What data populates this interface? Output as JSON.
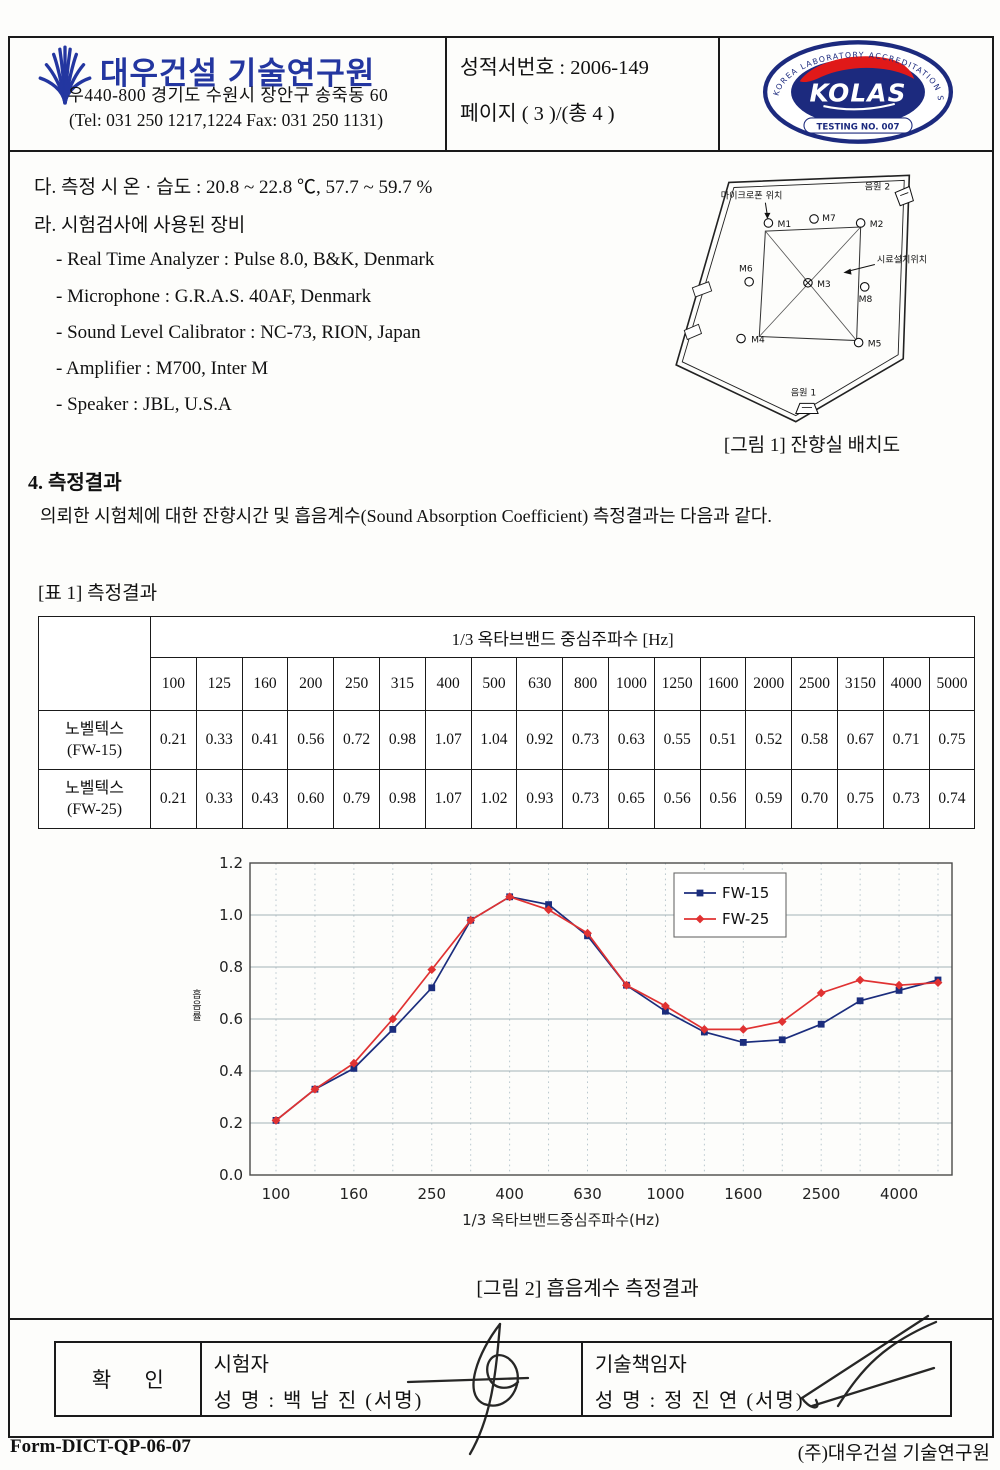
{
  "header": {
    "org_name": "대우건설 기술연구원",
    "address": "우440-800 경기도 수원시 장안구 송죽동 60",
    "tel_fax": "(Tel: 031 250 1217,1224   Fax: 031 250 1131)",
    "report_no": "성적서번호 : 2006-149",
    "page_label": "페이지 ( 3 )/(총 4 )",
    "seal": {
      "ring_text": "KOREA LABORATORY ACCREDITATION SCHEME",
      "name": "KOLAS",
      "testing_no": "TESTING NO. 007",
      "navy": "#1c2a7e",
      "red": "#e01919"
    }
  },
  "conditions": {
    "humidity_line": "다. 측정 시 온 · 습도 : 20.8 ~ 22.8 ℃, 57.7 ~ 59.7 %",
    "equipment_heading": "라. 시험검사에 사용된 장비",
    "equipment": [
      "- Real Time Analyzer : Pulse 8.0, B&K, Denmark",
      "- Microphone : G.R.A.S. 40AF, Denmark",
      "- Sound Level Calibrator : NC-73, RION, Japan",
      "- Amplifier : M700, Inter M",
      "- Speaker : JBL, U.S.A"
    ]
  },
  "figure1": {
    "caption": "[그림 1] 잔향실 배치도",
    "labels": {
      "mic_position": "마이크로폰 위치",
      "specimen": "시료설치위치",
      "source1": "음원 1",
      "source2": "음원 2",
      "mics": [
        "M1",
        "M7",
        "M2",
        "M6",
        "M3",
        "M8",
        "M4",
        "M5"
      ]
    }
  },
  "section4": {
    "heading": "4. 측정결과",
    "body": "의뢰한 시험체에 대한 잔향시간 및 흡음계수(Sound Absorption Coefficient) 측정결과는 다음과 같다.",
    "table_label": "[표 1] 측정결과"
  },
  "table": {
    "band_header": "1/3 옥타브밴드 중심주파수 [Hz]",
    "frequencies": [
      "100",
      "125",
      "160",
      "200",
      "250",
      "315",
      "400",
      "500",
      "630",
      "800",
      "1000",
      "1250",
      "1600",
      "2000",
      "2500",
      "3150",
      "4000",
      "5000"
    ],
    "rows": [
      {
        "name": "노벨텍스",
        "sub": "(FW-15)",
        "values": [
          "0.21",
          "0.33",
          "0.41",
          "0.56",
          "0.72",
          "0.98",
          "1.07",
          "1.04",
          "0.92",
          "0.73",
          "0.63",
          "0.55",
          "0.51",
          "0.52",
          "0.58",
          "0.67",
          "0.71",
          "0.75"
        ]
      },
      {
        "name": "노벨텍스",
        "sub": "(FW-25)",
        "values": [
          "0.21",
          "0.33",
          "0.43",
          "0.60",
          "0.79",
          "0.98",
          "1.07",
          "1.02",
          "0.93",
          "0.73",
          "0.65",
          "0.56",
          "0.56",
          "0.59",
          "0.70",
          "0.75",
          "0.73",
          "0.74"
        ]
      }
    ]
  },
  "chart_data": {
    "type": "line",
    "title": "",
    "categories": [
      100,
      125,
      160,
      200,
      250,
      315,
      400,
      500,
      630,
      800,
      1000,
      1250,
      1600,
      2000,
      2500,
      3150,
      4000,
      5000
    ],
    "series": [
      {
        "name": "FW-15",
        "color": "#1b2d7d",
        "marker": "square",
        "values": [
          0.21,
          0.33,
          0.41,
          0.56,
          0.72,
          0.98,
          1.07,
          1.04,
          0.92,
          0.73,
          0.63,
          0.55,
          0.51,
          0.52,
          0.58,
          0.67,
          0.71,
          0.75
        ]
      },
      {
        "name": "FW-25",
        "color": "#e03232",
        "marker": "diamond",
        "values": [
          0.21,
          0.33,
          0.43,
          0.6,
          0.79,
          0.98,
          1.07,
          1.02,
          0.93,
          0.73,
          0.65,
          0.56,
          0.56,
          0.59,
          0.7,
          0.75,
          0.73,
          0.74
        ]
      }
    ],
    "xlabel": "1/3 옥타브밴드중심주파수(Hz)",
    "ylabel": "흡음률",
    "ylim": [
      0.0,
      1.2
    ],
    "ytick_step": 0.2,
    "x_tick_labels": [
      "100",
      "160",
      "250",
      "400",
      "630",
      "1000",
      "1600",
      "2500",
      "4000"
    ],
    "legend_position": "top-right",
    "grid": true
  },
  "figure2": {
    "caption": "[그림 2] 흡음계수 측정결과"
  },
  "approval": {
    "confirm": "확 인",
    "tester_title": "시험자",
    "tester_name": "성  명 :  백  남  진  (서명)",
    "manager_title": "기술책임자",
    "manager_name": "성  명 :  정  진  연  (서명)"
  },
  "footer": {
    "form_no": "Form-DICT-QP-06-07",
    "company": "(주)대우건설 기술연구원"
  }
}
